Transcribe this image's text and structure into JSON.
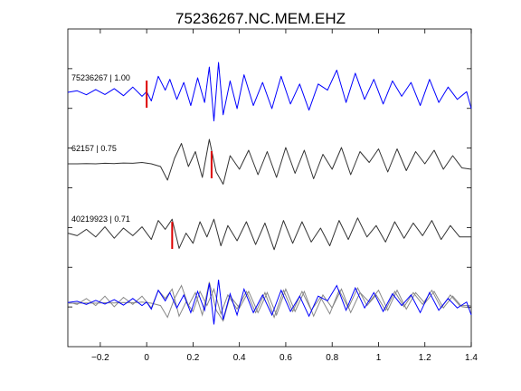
{
  "chart_data": {
    "type": "line",
    "title": "75236267.NC.MEM.EHZ",
    "xlabel": "",
    "ylabel": "",
    "xlim": [
      -0.34,
      1.4
    ],
    "x_ticks": [
      -0.2,
      0,
      0.2,
      0.4,
      0.6,
      0.8,
      1,
      1.2,
      1.4
    ],
    "x_tick_labels": [
      "−0.2",
      "0",
      "0.2",
      "0.4",
      "0.6",
      "0.8",
      "1",
      "1.2",
      "1.4"
    ],
    "grid": false,
    "colors": {
      "master": "#0000ff",
      "other": "#333333",
      "overlay": "#888888",
      "pick": "#dd0000",
      "axis": "#000000"
    },
    "traces": [
      {
        "label": "75236267 | 1.00",
        "color": "#0000ff",
        "pick_x": 0.0,
        "x": [
          -0.34,
          -0.3,
          -0.26,
          -0.22,
          -0.18,
          -0.14,
          -0.1,
          -0.06,
          -0.02,
          0.0,
          0.02,
          0.05,
          0.08,
          0.1,
          0.13,
          0.16,
          0.19,
          0.22,
          0.25,
          0.27,
          0.29,
          0.31,
          0.33,
          0.36,
          0.39,
          0.42,
          0.46,
          0.5,
          0.54,
          0.58,
          0.62,
          0.66,
          0.7,
          0.74,
          0.78,
          0.82,
          0.86,
          0.9,
          0.94,
          0.98,
          1.02,
          1.06,
          1.1,
          1.14,
          1.18,
          1.22,
          1.26,
          1.3,
          1.34,
          1.38,
          1.4
        ],
        "y": [
          0.03,
          0.08,
          -0.05,
          0.12,
          -0.04,
          0.15,
          -0.08,
          0.2,
          -0.1,
          0.05,
          -0.25,
          0.55,
          0.1,
          0.45,
          -0.2,
          0.35,
          -0.4,
          0.5,
          -0.3,
          0.85,
          -0.9,
          1.0,
          -0.7,
          0.4,
          -0.5,
          0.6,
          -0.4,
          0.35,
          -0.5,
          0.55,
          -0.35,
          0.3,
          -0.55,
          0.3,
          0.1,
          0.75,
          -0.3,
          0.65,
          -0.2,
          0.45,
          -0.35,
          0.4,
          -0.1,
          0.35,
          -0.4,
          0.45,
          -0.3,
          0.2,
          -0.2,
          0.05,
          -0.5
        ]
      },
      {
        "label": "62157 | 0.75",
        "color": "#333333",
        "pick_x": 0.28,
        "x": [
          -0.34,
          -0.3,
          -0.26,
          -0.22,
          -0.18,
          -0.14,
          -0.1,
          -0.06,
          -0.02,
          0.02,
          0.06,
          0.09,
          0.12,
          0.15,
          0.18,
          0.21,
          0.24,
          0.27,
          0.3,
          0.33,
          0.36,
          0.4,
          0.44,
          0.48,
          0.52,
          0.56,
          0.6,
          0.64,
          0.68,
          0.72,
          0.76,
          0.8,
          0.84,
          0.88,
          0.92,
          0.96,
          1.0,
          1.04,
          1.08,
          1.12,
          1.16,
          1.2,
          1.24,
          1.28,
          1.32,
          1.36,
          1.4
        ],
        "y": [
          0.0,
          0.0,
          0.01,
          0.0,
          0.02,
          0.01,
          0.03,
          0.02,
          0.05,
          0.0,
          -0.1,
          -0.6,
          0.2,
          0.75,
          -0.1,
          0.45,
          -0.5,
          0.9,
          -0.3,
          -0.75,
          0.3,
          -0.2,
          0.5,
          -0.4,
          0.45,
          -0.5,
          0.6,
          -0.35,
          0.5,
          -0.55,
          0.35,
          -0.2,
          0.6,
          -0.4,
          0.45,
          0.05,
          0.55,
          -0.3,
          0.55,
          -0.25,
          0.45,
          0.0,
          0.5,
          -0.2,
          0.3,
          -0.15,
          -0.2
        ]
      },
      {
        "label": "40219923 | 0.71",
        "color": "#333333",
        "pick_x": 0.11,
        "x": [
          -0.34,
          -0.3,
          -0.26,
          -0.22,
          -0.18,
          -0.14,
          -0.1,
          -0.06,
          -0.02,
          0.02,
          0.05,
          0.08,
          0.11,
          0.14,
          0.17,
          0.2,
          0.23,
          0.26,
          0.29,
          0.32,
          0.35,
          0.39,
          0.43,
          0.47,
          0.51,
          0.55,
          0.59,
          0.63,
          0.67,
          0.71,
          0.75,
          0.79,
          0.83,
          0.87,
          0.91,
          0.95,
          0.99,
          1.03,
          1.07,
          1.11,
          1.15,
          1.19,
          1.23,
          1.27,
          1.31,
          1.35,
          1.4
        ],
        "y": [
          0.05,
          -0.05,
          0.2,
          -0.1,
          0.3,
          -0.15,
          0.25,
          -0.05,
          0.3,
          -0.2,
          0.55,
          0.2,
          0.6,
          -0.55,
          0.05,
          -0.35,
          0.5,
          -0.1,
          0.6,
          -0.45,
          0.35,
          -0.25,
          0.5,
          -0.4,
          0.45,
          -0.6,
          0.55,
          -0.35,
          0.5,
          -0.3,
          0.25,
          -0.45,
          0.55,
          -0.2,
          0.65,
          -0.1,
          0.35,
          -0.3,
          0.5,
          -0.15,
          0.45,
          -0.05,
          0.55,
          -0.2,
          0.35,
          -0.1,
          -0.1
        ]
      }
    ]
  }
}
